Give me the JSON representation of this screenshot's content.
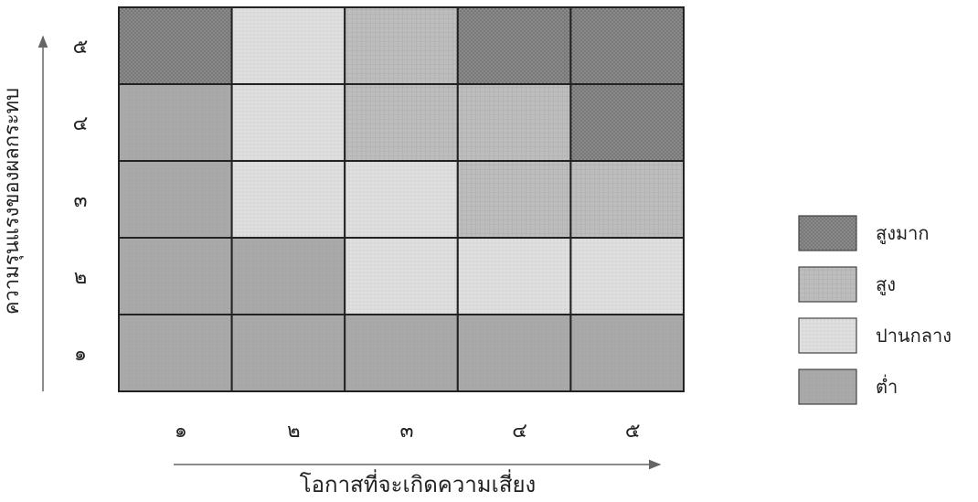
{
  "chart_data": {
    "type": "heatmap",
    "title": "",
    "xlabel": "โอกาสที่จะเกิดความเสี่ยง",
    "ylabel": "ความรุนแรงของผลกระทบ",
    "x_categories": [
      "๑",
      "๒",
      "๓",
      "๔",
      "๕"
    ],
    "y_categories": [
      "๑",
      "๒",
      "๓",
      "๔",
      "๕"
    ],
    "levels": [
      {
        "key": "very_high",
        "label": "สูงมาก",
        "color": "#8e8e8e",
        "pattern": "crosshatch"
      },
      {
        "key": "high",
        "label": "สูง",
        "color": "#bdbdbd",
        "pattern": "grid"
      },
      {
        "key": "medium",
        "label": "ปานกลาง",
        "color": "#dcdcdc",
        "pattern": "dots"
      },
      {
        "key": "low",
        "label": "ต่ำ",
        "color": "#a8a8a8",
        "pattern": "plain"
      }
    ],
    "matrix_rows_top_to_bottom": [
      [
        "very_high",
        "medium",
        "high",
        "very_high",
        "very_high"
      ],
      [
        "low",
        "medium",
        "high",
        "high",
        "very_high"
      ],
      [
        "low",
        "medium",
        "medium",
        "high",
        "high"
      ],
      [
        "low",
        "low",
        "medium",
        "medium",
        "medium"
      ],
      [
        "low",
        "low",
        "low",
        "low",
        "low"
      ]
    ],
    "legend_position": "right"
  }
}
